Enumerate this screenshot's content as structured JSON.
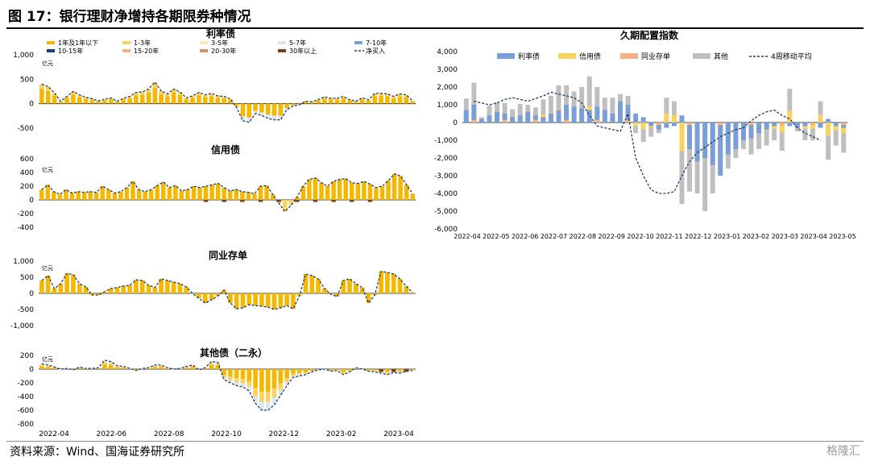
{
  "title": "图 17：银行理财净增持各期限券种情况",
  "source": "资料来源：Wind、国海证券研究所",
  "watermark": "格隆汇",
  "colors": {
    "y1": "#F5B800",
    "y13": "#FAD25E",
    "y35": "#FBEBB5",
    "y57": "#DCE6F4",
    "y710": "#7A9FD8",
    "y1015": "#1F3C88",
    "y1520": "#F4B184",
    "y2030": "#D9905F",
    "y30": "#7A3E10",
    "net": "#1F3C70",
    "rate": "#7A9FD8",
    "credit": "#FAD25E",
    "cd": "#F4B184",
    "other": "#BFBFBF",
    "ma": "#1F3C70"
  },
  "chart_data": [
    {
      "type": "bar",
      "title": "利率债",
      "unit": "亿元",
      "legend": [
        "1年及1年以下",
        "1-3年",
        "3-5年",
        "5-7年",
        "7-10年",
        "10-15年",
        "15-20年",
        "20-30年",
        "30年以上",
        "净买入"
      ],
      "ylim": [
        -500,
        1000
      ],
      "yticks": [
        "1,000",
        "500",
        "0",
        "-500"
      ],
      "net": [
        400,
        350,
        220,
        50,
        150,
        250,
        180,
        130,
        100,
        60,
        90,
        120,
        50,
        110,
        150,
        230,
        240,
        300,
        440,
        260,
        200,
        300,
        240,
        120,
        160,
        230,
        180,
        210,
        160,
        150,
        100,
        -80,
        -350,
        -380,
        -200,
        -240,
        -300,
        -330,
        -330,
        -120,
        -50,
        -20,
        50,
        40,
        80,
        140,
        110,
        110,
        150,
        80,
        50,
        120,
        80,
        210,
        210,
        200,
        150,
        200,
        180,
        60
      ],
      "x_labels": [
        "2022-04",
        "2022-06",
        "2022-08",
        "2022-10",
        "2022-12",
        "2023-02",
        "2023-04"
      ]
    },
    {
      "type": "bar",
      "title": "信用债",
      "unit": "亿元",
      "ylim": [
        -400,
        600
      ],
      "yticks": [
        "600",
        "400",
        "200",
        "0",
        "-200",
        "-400"
      ],
      "net": [
        150,
        220,
        120,
        80,
        150,
        100,
        120,
        110,
        120,
        110,
        200,
        150,
        100,
        120,
        180,
        270,
        150,
        120,
        150,
        210,
        260,
        180,
        210,
        130,
        150,
        200,
        180,
        200,
        220,
        240,
        180,
        130,
        150,
        120,
        110,
        90,
        200,
        210,
        80,
        -50,
        -170,
        -80,
        40,
        200,
        300,
        320,
        250,
        200,
        270,
        300,
        310,
        250,
        240,
        270,
        230,
        180,
        200,
        280,
        380,
        350,
        220,
        90
      ]
    },
    {
      "type": "bar",
      "title": "同业存单",
      "unit": "亿元",
      "ylim": [
        -1000,
        1000
      ],
      "yticks": [
        "1,000",
        "500",
        "0",
        "-500",
        "-1,000"
      ],
      "net": [
        400,
        550,
        150,
        300,
        620,
        580,
        300,
        200,
        -50,
        -50,
        50,
        150,
        180,
        230,
        250,
        420,
        400,
        250,
        180,
        450,
        400,
        350,
        300,
        200,
        0,
        -150,
        -300,
        -200,
        -80,
        100,
        -300,
        -480,
        -450,
        -350,
        -380,
        -400,
        -430,
        -500,
        -450,
        -380,
        -480,
        -80,
        600,
        550,
        450,
        150,
        -30,
        -100,
        400,
        450,
        300,
        180,
        -300,
        -50,
        680,
        650,
        600,
        450,
        220,
        20
      ]
    },
    {
      "type": "bar",
      "title": "其他债（二永）",
      "unit": "亿元",
      "ylim": [
        -800,
        200
      ],
      "yticks": [
        "200",
        "0",
        "-200",
        "-400",
        "-600",
        "-800"
      ],
      "net": [
        80,
        60,
        30,
        0,
        10,
        -10,
        30,
        10,
        10,
        20,
        130,
        110,
        50,
        40,
        10,
        -20,
        10,
        20,
        60,
        60,
        20,
        0,
        10,
        40,
        60,
        -10,
        20,
        110,
        100,
        -150,
        -200,
        -240,
        -260,
        -320,
        -500,
        -600,
        -600,
        -520,
        -380,
        -240,
        -120,
        -100,
        -80,
        -40,
        -10,
        0,
        -30,
        -20,
        -80,
        -40,
        20,
        0,
        -30,
        -40,
        -60,
        -80,
        -50,
        -60,
        -30,
        -20
      ]
    },
    {
      "type": "bar",
      "title": "久期配置指数",
      "legend": [
        "利率债",
        "信用债",
        "同业存单",
        "其他",
        "4周移动平均"
      ],
      "ylim": [
        -6000,
        4000
      ],
      "yticks": [
        "4,000",
        "3,000",
        "2,000",
        "1,000",
        "0",
        "-1,000",
        "-2,000",
        "-3,000",
        "-4,000",
        "-5,000",
        "-6,000"
      ],
      "x_labels": [
        "2022-04",
        "2022-05",
        "2022-06",
        "2022-07",
        "2022-08",
        "2022-09",
        "2022-10",
        "2022-11",
        "2022-12",
        "2023-01",
        "2023-02",
        "2023-03",
        "2023-04",
        "2023-05"
      ],
      "rate": [
        700,
        1000,
        200,
        400,
        600,
        500,
        300,
        400,
        600,
        400,
        300,
        500,
        700,
        1000,
        900,
        800,
        700,
        900,
        700,
        500,
        1200,
        1000,
        500,
        300,
        -200,
        -400,
        -300,
        -200,
        400,
        -1500,
        -2200,
        -2000,
        -2400,
        -3000,
        -1800,
        -1500,
        -1000,
        -900,
        -600,
        -400,
        -200,
        -100,
        -200,
        -300,
        -200,
        -100,
        -300,
        200,
        -200,
        -300,
        200,
        400
      ],
      "total": [
        1350,
        2250,
        300,
        950,
        1150,
        1100,
        750,
        1050,
        1000,
        850,
        1300,
        1500,
        2100,
        2100,
        1750,
        2000,
        2600,
        2000,
        1400,
        1400,
        1600,
        1500,
        -600,
        -1100,
        -800,
        -600,
        1400,
        1200,
        -4600,
        -3900,
        -4000,
        -5000,
        -4000,
        -3000,
        -2600,
        -2000,
        -1500,
        -1800,
        -1500,
        -1300,
        -1000,
        -1600,
        1900,
        -500,
        -1000,
        -1000,
        1200,
        -2100,
        -1300,
        -1700
      ],
      "ma": [
        1200,
        1100,
        1000,
        1100,
        1300,
        1400,
        1300,
        1200,
        1350,
        1500,
        1700,
        1600,
        1500,
        1400,
        1100,
        400,
        -200,
        -300,
        -400,
        -500,
        500,
        -2000,
        -3000,
        -3800,
        -4000,
        -4000,
        -3900,
        -3000,
        -2200,
        -1700,
        -1400,
        -1100,
        -800,
        -600,
        -400,
        -300,
        100,
        400,
        600,
        700,
        400,
        200,
        -300,
        -600,
        -800,
        -1000
      ]
    }
  ]
}
